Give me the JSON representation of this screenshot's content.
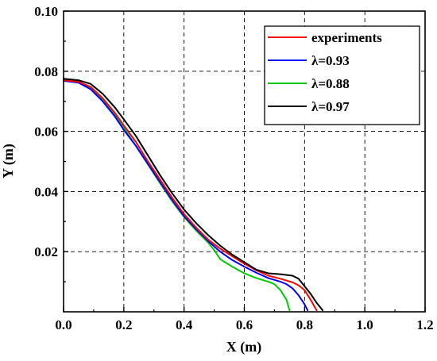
{
  "chart_data": {
    "type": "line",
    "title": "",
    "xlabel": "X (m)",
    "ylabel": "Y (m)",
    "xlim": [
      0.0,
      1.2
    ],
    "ylim": [
      0.0,
      0.1
    ],
    "x_ticks": [
      "0.0",
      "0.2",
      "0.4",
      "0.6",
      "0.8",
      "1.0",
      "1.2"
    ],
    "y_ticks": [
      "0.02",
      "0.04",
      "0.06",
      "0.08",
      "0.10"
    ],
    "grid": "dashed",
    "legend_position": "top-right",
    "series": [
      {
        "name": "experiments",
        "color": "#ff0000",
        "x": [
          0.0,
          0.05,
          0.09,
          0.13,
          0.17,
          0.2,
          0.24,
          0.28,
          0.32,
          0.36,
          0.4,
          0.44,
          0.48,
          0.52,
          0.56,
          0.6,
          0.64,
          0.68,
          0.72,
          0.76,
          0.78,
          0.8,
          0.82,
          0.84
        ],
        "y": [
          0.077,
          0.0765,
          0.0748,
          0.071,
          0.0662,
          0.062,
          0.0565,
          0.05,
          0.044,
          0.038,
          0.0325,
          0.028,
          0.024,
          0.021,
          0.0185,
          0.016,
          0.0138,
          0.012,
          0.011,
          0.0098,
          0.0088,
          0.0072,
          0.004,
          0.0005
        ]
      },
      {
        "name": "λ=0.93",
        "color": "#0000ff",
        "x": [
          0.0,
          0.05,
          0.09,
          0.13,
          0.17,
          0.2,
          0.24,
          0.28,
          0.32,
          0.36,
          0.4,
          0.44,
          0.48,
          0.52,
          0.56,
          0.6,
          0.64,
          0.68,
          0.72,
          0.74,
          0.76,
          0.78,
          0.8,
          0.81
        ],
        "y": [
          0.0768,
          0.0762,
          0.074,
          0.07,
          0.065,
          0.0605,
          0.0552,
          0.0492,
          0.0432,
          0.0372,
          0.0318,
          0.0275,
          0.0235,
          0.02,
          0.0172,
          0.015,
          0.013,
          0.0112,
          0.01,
          0.0092,
          0.0078,
          0.0055,
          0.0025,
          0.0005
        ]
      },
      {
        "name": "λ=0.88",
        "color": "#00cc00",
        "x": [
          0.0,
          0.05,
          0.09,
          0.13,
          0.17,
          0.2,
          0.24,
          0.28,
          0.32,
          0.36,
          0.4,
          0.44,
          0.48,
          0.5,
          0.52,
          0.56,
          0.6,
          0.64,
          0.68,
          0.7,
          0.72,
          0.74,
          0.75
        ],
        "y": [
          0.0772,
          0.0765,
          0.0745,
          0.0705,
          0.0655,
          0.0612,
          0.0552,
          0.049,
          0.0428,
          0.0368,
          0.0315,
          0.027,
          0.023,
          0.0205,
          0.0175,
          0.015,
          0.0128,
          0.0112,
          0.01,
          0.0092,
          0.0072,
          0.004,
          0.0005
        ]
      },
      {
        "name": "λ=0.97",
        "color": "#000000",
        "x": [
          0.0,
          0.05,
          0.09,
          0.13,
          0.17,
          0.2,
          0.24,
          0.28,
          0.32,
          0.36,
          0.4,
          0.44,
          0.48,
          0.52,
          0.56,
          0.6,
          0.64,
          0.68,
          0.72,
          0.76,
          0.78,
          0.8,
          0.82,
          0.84,
          0.86
        ],
        "y": [
          0.0775,
          0.077,
          0.0758,
          0.0725,
          0.068,
          0.064,
          0.0585,
          0.052,
          0.0455,
          0.0395,
          0.034,
          0.0295,
          0.0255,
          0.022,
          0.019,
          0.0165,
          0.014,
          0.0128,
          0.0125,
          0.012,
          0.011,
          0.0085,
          0.006,
          0.003,
          0.0005
        ]
      }
    ]
  }
}
